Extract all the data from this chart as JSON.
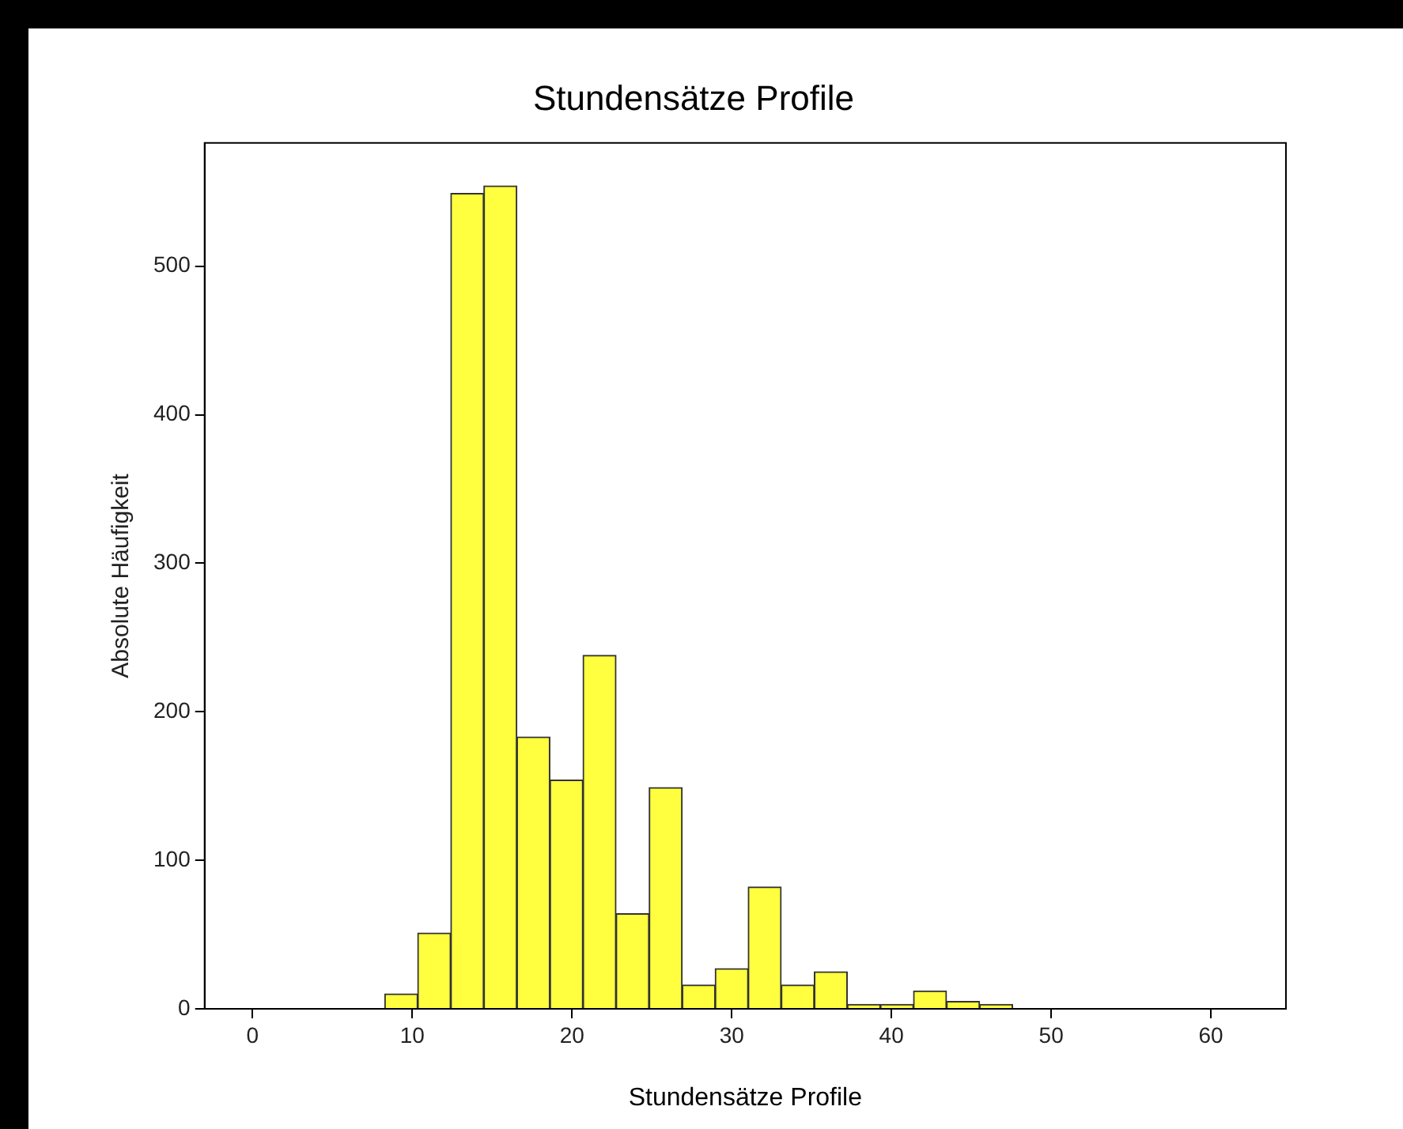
{
  "chart_data": {
    "type": "histogram",
    "title": "Stundensätze Profile",
    "xlabel": "Stundensätze Profile",
    "ylabel": "Absolute Häufigkeit",
    "bins": [
      0,
      2.07,
      4.14,
      6.21,
      8.28,
      10.34,
      12.41,
      14.48,
      16.55,
      18.62,
      20.69,
      22.76,
      24.83,
      26.9,
      28.97,
      31.03,
      33.1,
      35.17,
      37.24,
      39.31,
      41.38,
      43.45,
      45.52,
      47.59,
      49.66,
      51.72,
      53.79,
      55.86,
      57.93,
      60
    ],
    "values": [
      0,
      0,
      0,
      0,
      10,
      51,
      549,
      554,
      183,
      154,
      238,
      64,
      149,
      16,
      27,
      82,
      16,
      25,
      3,
      3,
      12,
      5,
      3,
      0,
      0,
      0,
      0,
      0,
      0
    ],
    "color": "#ffff40",
    "xlim": [
      -3,
      64.7
    ],
    "ylim": [
      0,
      583
    ],
    "xticks": [
      0,
      10,
      20,
      30,
      40,
      50,
      60
    ],
    "yticks": [
      0,
      100,
      200,
      300,
      400,
      500
    ],
    "grid": false,
    "legend": false
  }
}
